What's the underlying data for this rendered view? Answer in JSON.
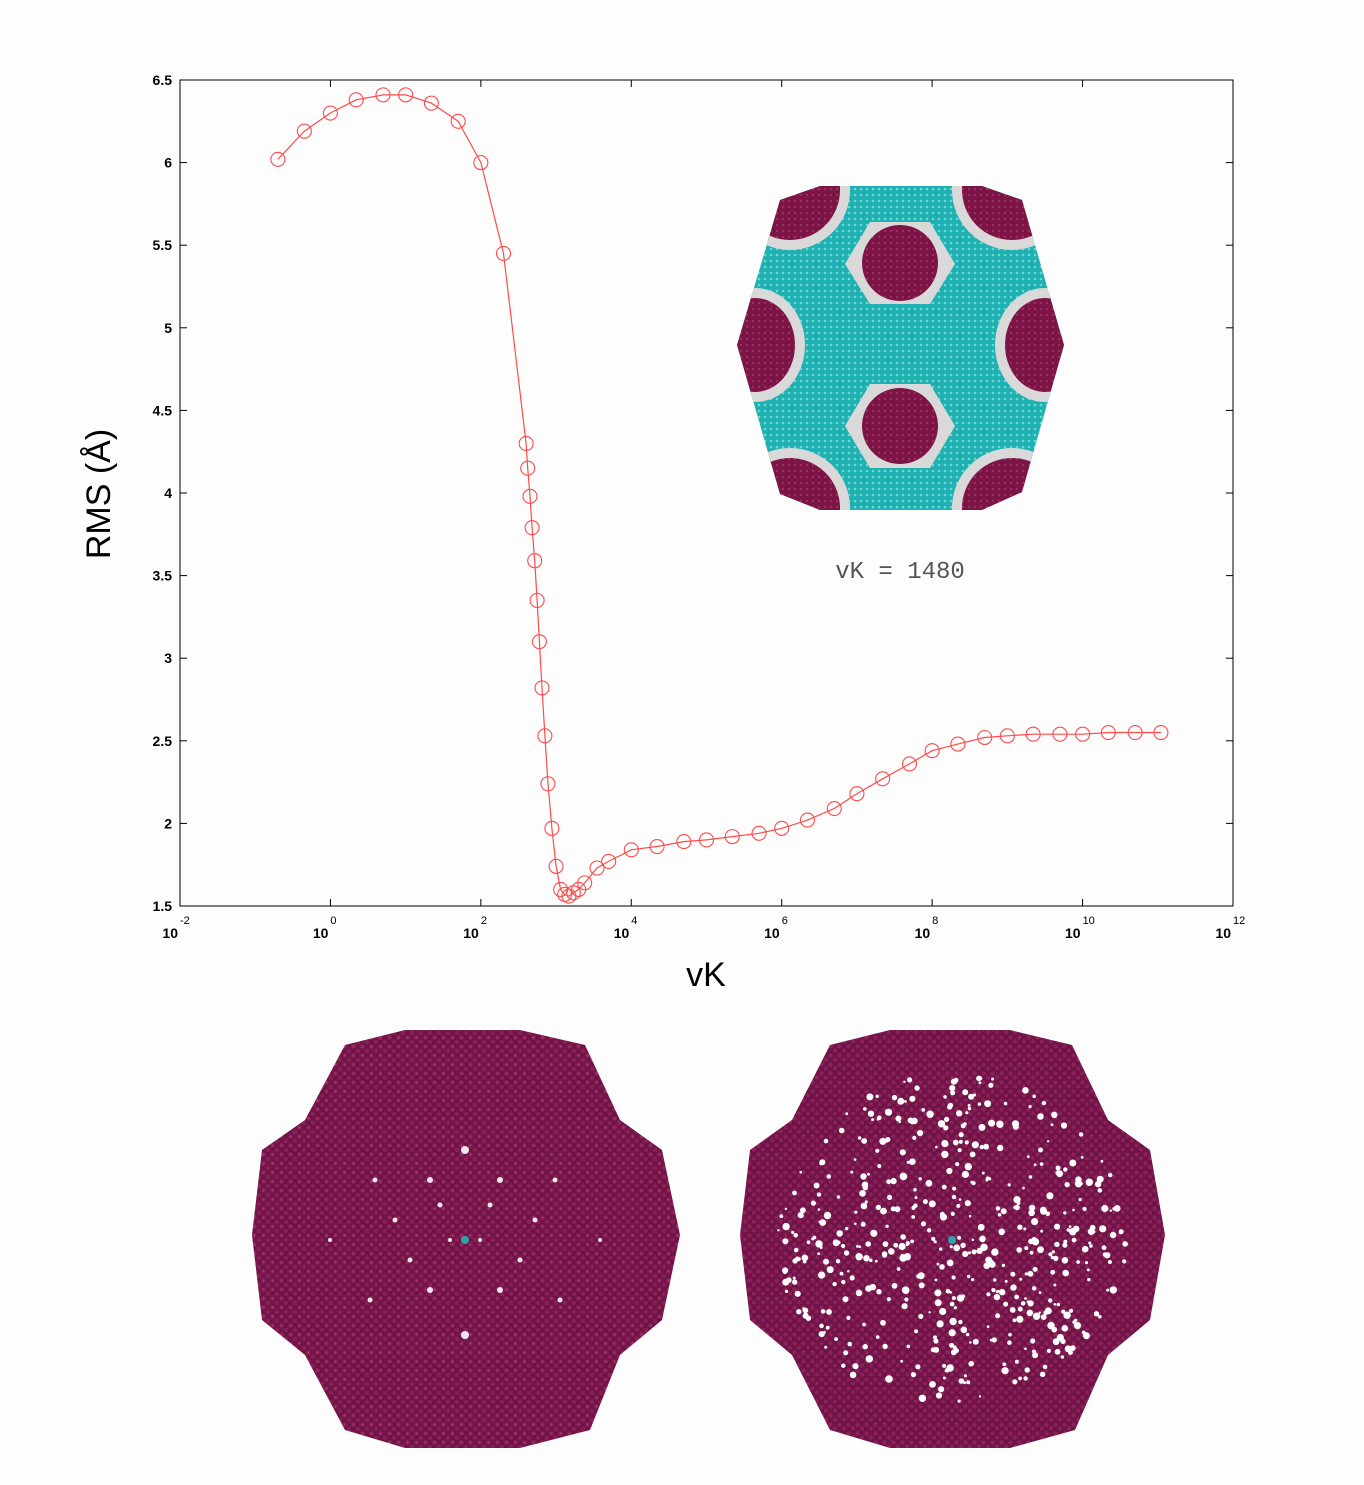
{
  "chart_data": {
    "type": "line",
    "xscale": "log",
    "xlabel": "vK",
    "ylabel": "RMS (Å)",
    "xlim": [
      0.01,
      1000000000000
    ],
    "ylim": [
      1.5,
      6.5
    ],
    "x_ticks": [
      {
        "base": "10",
        "exp": "-2",
        "value": 0.01
      },
      {
        "base": "10",
        "exp": "0",
        "value": 1
      },
      {
        "base": "10",
        "exp": "2",
        "value": 100
      },
      {
        "base": "10",
        "exp": "4",
        "value": 10000
      },
      {
        "base": "10",
        "exp": "6",
        "value": 1000000
      },
      {
        "base": "10",
        "exp": "8",
        "value": 100000000
      },
      {
        "base": "10",
        "exp": "10",
        "value": 10000000000
      },
      {
        "base": "10",
        "exp": "12",
        "value": 1000000000000
      }
    ],
    "y_ticks": [
      "1.5",
      "2",
      "2.5",
      "3",
      "3.5",
      "4",
      "4.5",
      "5",
      "5.5",
      "6",
      "6.5"
    ],
    "series": [
      {
        "color": "#ff4a4a",
        "marker": "circle",
        "points": [
          [
            0.2,
            6.02
          ],
          [
            0.45,
            6.19
          ],
          [
            1.0,
            6.3
          ],
          [
            2.2,
            6.38
          ],
          [
            5.0,
            6.41
          ],
          [
            10.0,
            6.41
          ],
          [
            22,
            6.36
          ],
          [
            50,
            6.25
          ],
          [
            100,
            6.0
          ],
          [
            200,
            5.45
          ],
          [
            400,
            4.3
          ],
          [
            420,
            4.15
          ],
          [
            450,
            3.98
          ],
          [
            480,
            3.79
          ],
          [
            520,
            3.59
          ],
          [
            560,
            3.35
          ],
          [
            600,
            3.1
          ],
          [
            650,
            2.82
          ],
          [
            710,
            2.53
          ],
          [
            780,
            2.24
          ],
          [
            880,
            1.97
          ],
          [
            1000,
            1.74
          ],
          [
            1150,
            1.6
          ],
          [
            1300,
            1.57
          ],
          [
            1480,
            1.56
          ],
          [
            1700,
            1.58
          ],
          [
            2000,
            1.6
          ],
          [
            2400,
            1.64
          ],
          [
            3500,
            1.73
          ],
          [
            5000,
            1.77
          ],
          [
            10000,
            1.84
          ],
          [
            22000,
            1.86
          ],
          [
            50000,
            1.89
          ],
          [
            100000,
            1.9
          ],
          [
            220000,
            1.92
          ],
          [
            500000,
            1.94
          ],
          [
            1000000,
            1.97
          ],
          [
            2200000,
            2.02
          ],
          [
            5000000,
            2.09
          ],
          [
            10000000,
            2.18
          ],
          [
            22000000,
            2.27
          ],
          [
            50000000,
            2.36
          ],
          [
            100000000,
            2.44
          ],
          [
            220000000,
            2.48
          ],
          [
            500000000,
            2.52
          ],
          [
            1000000000,
            2.53
          ],
          [
            2200000000,
            2.54
          ],
          [
            5000000000,
            2.54
          ],
          [
            10000000000,
            2.54
          ],
          [
            22000000000,
            2.55
          ],
          [
            50000000000,
            2.55
          ],
          [
            110000000000,
            2.55
          ]
        ]
      }
    ],
    "grid": false,
    "inset": {
      "label": "vK = 1480",
      "colors": {
        "teal": "#1fb1b1",
        "maroon": "#7c1446",
        "ring": "#d9d9d9"
      }
    },
    "lower_images": [
      {
        "colors": {
          "body": "#6e1546",
          "center": "#2aa7a2"
        }
      },
      {
        "colors": {
          "body": "#6e1546",
          "center": "#2aa7a2"
        }
      }
    ]
  }
}
